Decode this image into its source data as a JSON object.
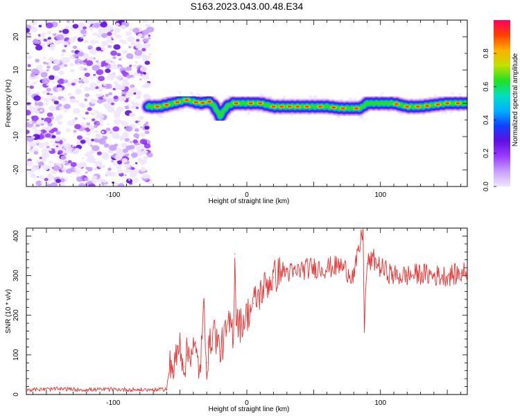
{
  "title": "S163.2023.043.00.48.E34",
  "colors": {
    "snr_line": "#e83030",
    "frame": "#000000",
    "colormap": [
      "#f0e6ff",
      "#c8a0ff",
      "#9a3cff",
      "#6010e0",
      "#1040ff",
      "#00b0ff",
      "#00e0c0",
      "#20e020",
      "#c0e000",
      "#ffb000",
      "#ff4000",
      "#ff0060"
    ]
  },
  "chart_data": [
    {
      "type": "heatmap",
      "xlabel": "Height of straight line (km)",
      "ylabel": "Frequency (Hz)",
      "xlim": [
        -165,
        165
      ],
      "ylim": [
        -25,
        25
      ],
      "xticks": [
        -100,
        0,
        100
      ],
      "xtick_labels": [
        "-100",
        "0",
        "100"
      ],
      "yticks": [
        -20,
        -10,
        0,
        10,
        20
      ],
      "ytick_labels": [
        "-20",
        "-10",
        "0",
        "10",
        "20"
      ],
      "noise_region_x": [
        -165,
        -72
      ],
      "ridge": {
        "x": [
          -75,
          -65,
          -55,
          -45,
          -35,
          -28,
          -24,
          -20,
          -15,
          -10,
          0,
          10,
          20,
          30,
          40,
          50,
          60,
          70,
          80,
          85,
          90,
          100,
          110,
          120,
          130,
          140,
          150,
          160,
          165
        ],
        "freq": [
          -1,
          -1,
          0,
          1,
          0,
          0.5,
          -1,
          -4,
          -1,
          0,
          0,
          0,
          -1,
          -1,
          -1,
          -1,
          -1,
          -1.5,
          -1.5,
          -1.5,
          0,
          0,
          0,
          -1,
          -1,
          -0.5,
          0,
          0,
          0
        ]
      },
      "colorbar": {
        "label": "Normalized spectral amplitude",
        "range": [
          0,
          1
        ],
        "ticks": [
          0.0,
          0.2,
          0.4,
          0.6,
          0.8
        ],
        "tick_labels": [
          "0.0",
          "0.2",
          "0.4",
          "0.6",
          "0.8"
        ]
      }
    },
    {
      "type": "line",
      "xlabel": "Height of straight line (km)",
      "ylabel": "SNR (10 * v/v)",
      "xlim": [
        -165,
        165
      ],
      "ylim": [
        0,
        420
      ],
      "xticks": [
        -100,
        0,
        100
      ],
      "xtick_labels": [
        "-100",
        "0",
        "100"
      ],
      "yticks": [
        0,
        100,
        200,
        300,
        400
      ],
      "ytick_labels": [
        "0",
        "100",
        "200",
        "300",
        "400"
      ],
      "series": [
        {
          "x": [
            -165,
            -140,
            -120,
            -100,
            -80,
            -65,
            -60,
            -57,
            -55,
            -50,
            -47,
            -45,
            -40,
            -35,
            -32,
            -30,
            -25,
            -20,
            -15,
            -12,
            -10,
            -9,
            -8,
            -5,
            0,
            5,
            10,
            15,
            20,
            25,
            30,
            35,
            40,
            50,
            60,
            70,
            80,
            85,
            87,
            88,
            90,
            95,
            100,
            110,
            120,
            130,
            140,
            150,
            160,
            165
          ],
          "values": [
            10,
            12,
            10,
            11,
            10,
            10,
            12,
            85,
            60,
            130,
            70,
            100,
            120,
            60,
            220,
            80,
            170,
            110,
            160,
            180,
            150,
            355,
            200,
            175,
            200,
            230,
            255,
            280,
            295,
            310,
            310,
            305,
            315,
            320,
            320,
            325,
            300,
            380,
            420,
            175,
            330,
            340,
            320,
            300,
            300,
            305,
            300,
            300,
            305,
            310
          ]
        }
      ]
    }
  ]
}
